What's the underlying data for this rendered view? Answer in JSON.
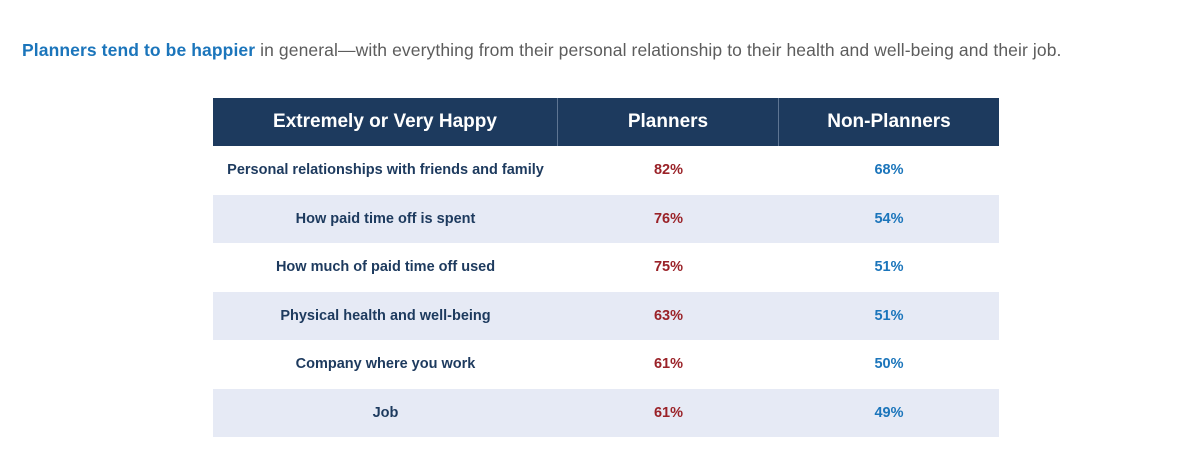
{
  "intro": {
    "lead": "Planners tend to be happier",
    "rest": " in general—with everything from their personal relationship to their health and well-being and their job."
  },
  "table": {
    "headers": [
      "Extremely or Very Happy",
      "Planners",
      "Non-Planners"
    ],
    "rows": [
      {
        "label": "Personal relationships with friends and family",
        "planners": "82%",
        "non_planners": "68%"
      },
      {
        "label": "How paid time off is spent",
        "planners": "76%",
        "non_planners": "54%"
      },
      {
        "label": "How much of paid time off used",
        "planners": "75%",
        "non_planners": "51%"
      },
      {
        "label": "Physical health and well-being",
        "planners": "63%",
        "non_planners": "51%"
      },
      {
        "label": "Company where you work",
        "planners": "61%",
        "non_planners": "50%"
      },
      {
        "label": "Job",
        "planners": "61%",
        "non_planners": "49%"
      }
    ]
  },
  "colors": {
    "header_bg": "#1d3a5e",
    "accent_blue": "#1b75bb",
    "planners_red": "#9a2228",
    "alt_row": "#e6eaf5"
  }
}
